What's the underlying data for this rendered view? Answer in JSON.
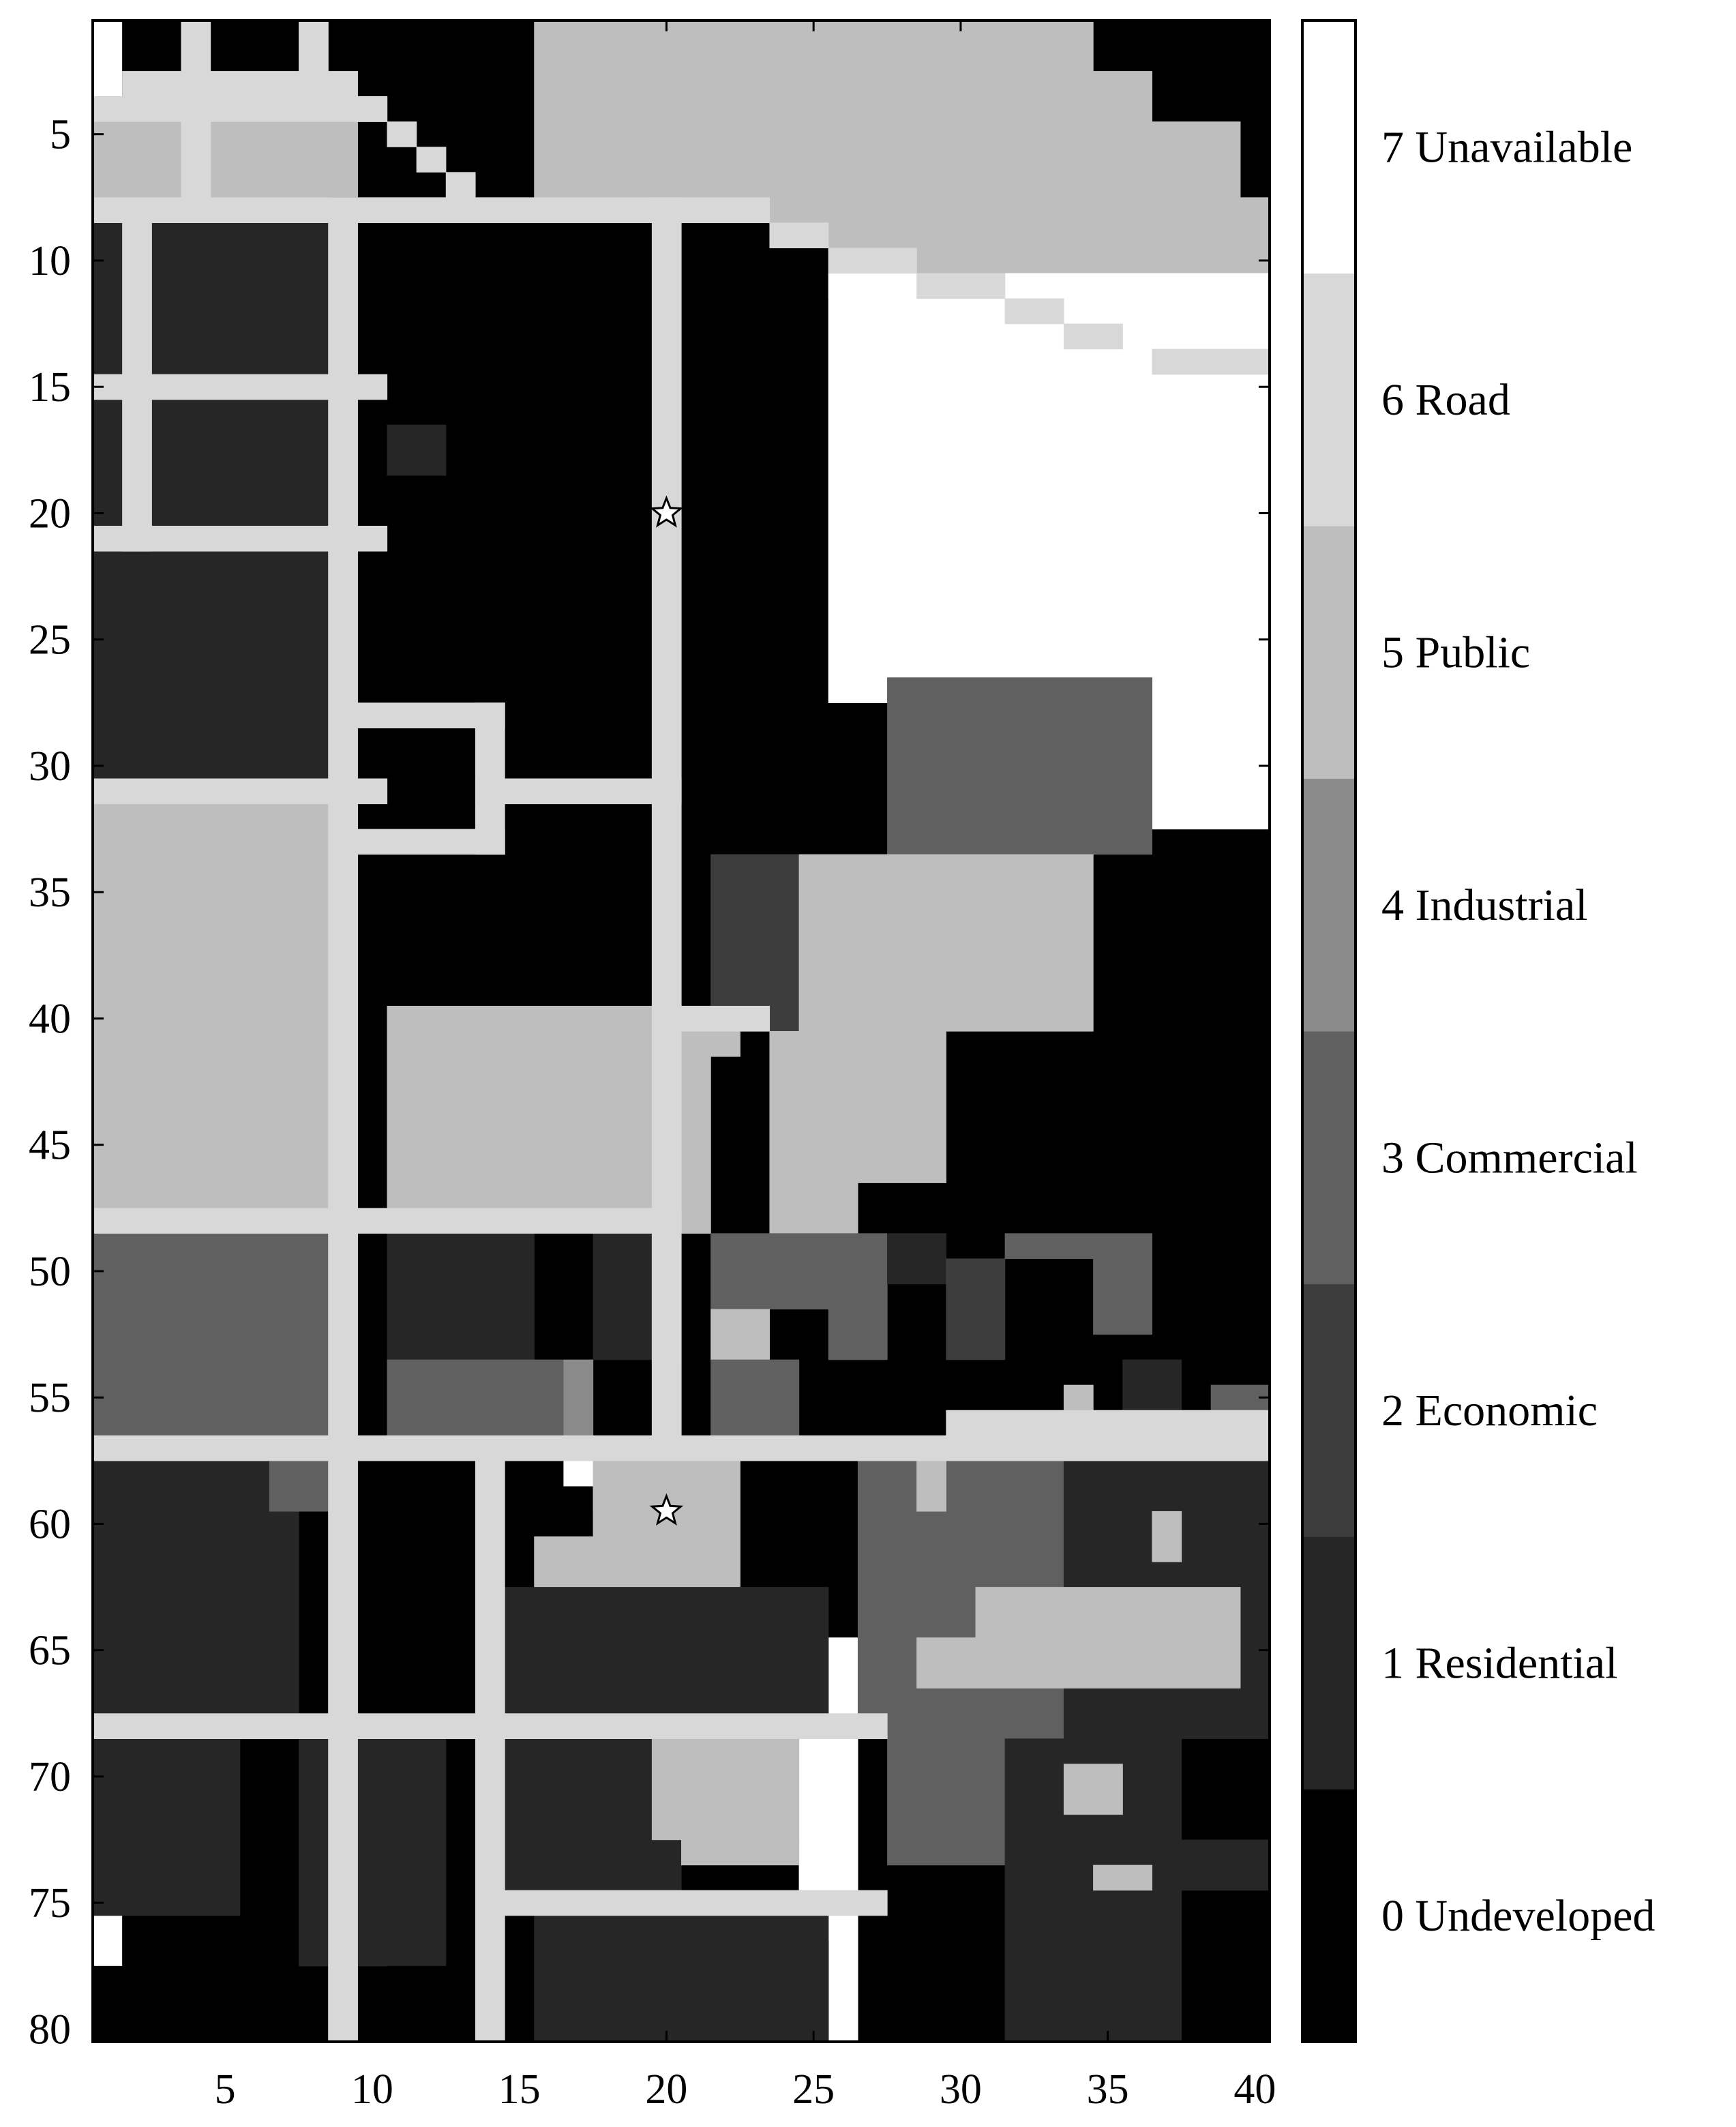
{
  "chart_data": {
    "type": "heatmap",
    "title": "",
    "xlabel": "",
    "ylabel": "",
    "xlim": [
      0.5,
      40.5
    ],
    "ylim": [
      0.5,
      80.5
    ],
    "y_direction": "down",
    "x_ticks": [
      5,
      10,
      15,
      20,
      25,
      30,
      35,
      40
    ],
    "y_ticks": [
      5,
      10,
      15,
      20,
      25,
      30,
      35,
      40,
      45,
      50,
      55,
      60,
      65,
      70,
      75,
      80
    ],
    "grid": false,
    "legend_position": "right",
    "colorbar": {
      "classes": [
        {
          "value": 0,
          "label": "0 Undeveloped",
          "color": "#000000"
        },
        {
          "value": 1,
          "label": "1 Residential",
          "color": "#262626"
        },
        {
          "value": 2,
          "label": "2 Economic",
          "color": "#3d3d3d"
        },
        {
          "value": 3,
          "label": "3 Commercial",
          "color": "#606060"
        },
        {
          "value": 4,
          "label": "4 Industrial",
          "color": "#8a8a8a"
        },
        {
          "value": 5,
          "label": "5 Public",
          "color": "#bebebe"
        },
        {
          "value": 6,
          "label": "6 Road",
          "color": "#d8d8d8"
        },
        {
          "value": 7,
          "label": "7 Unavailable",
          "color": "#ffffff"
        }
      ]
    },
    "markers": [
      {
        "shape": "star",
        "x": 20,
        "y": 20
      },
      {
        "shape": "star",
        "x": 20,
        "y": 59.5
      }
    ],
    "regions": [
      [
        2,
        1,
        40,
        80,
        0
      ],
      [
        16,
        1,
        21,
        8,
        5
      ],
      [
        22,
        1,
        34,
        8,
        5
      ],
      [
        35,
        3,
        36,
        8,
        5
      ],
      [
        37,
        5,
        39,
        8,
        5
      ],
      [
        26,
        8,
        40,
        11,
        5
      ],
      [
        29,
        11,
        40,
        13,
        5
      ],
      [
        37,
        13,
        40,
        14,
        5
      ],
      [
        1,
        4,
        9,
        8,
        5
      ],
      [
        9,
        8,
        10,
        8,
        0
      ],
      [
        26,
        11,
        40,
        27,
        7
      ],
      [
        35,
        27,
        40,
        32,
        7
      ],
      [
        1,
        9,
        1,
        15,
        1
      ],
      [
        3,
        9,
        9,
        15,
        1
      ],
      [
        1,
        15,
        1,
        21,
        1
      ],
      [
        3,
        15,
        9,
        21,
        1
      ],
      [
        1,
        22,
        9,
        31,
        1
      ],
      [
        11,
        17,
        12,
        18,
        1
      ],
      [
        28,
        27,
        36,
        33,
        3
      ],
      [
        22,
        34,
        24,
        40,
        2
      ],
      [
        25,
        34,
        34,
        40,
        5
      ],
      [
        22,
        41,
        22,
        41,
        5
      ],
      [
        24,
        41,
        29,
        46,
        5
      ],
      [
        24,
        47,
        26,
        48,
        5
      ],
      [
        1,
        32,
        9,
        48,
        5
      ],
      [
        11,
        40,
        21,
        48,
        5
      ],
      [
        1,
        49,
        9,
        56,
        3
      ],
      [
        11,
        49,
        15,
        53,
        1
      ],
      [
        18,
        49,
        20,
        53,
        1
      ],
      [
        11,
        54,
        16,
        56,
        3
      ],
      [
        17,
        54,
        17,
        56,
        4
      ],
      [
        22,
        49,
        25,
        51,
        3
      ],
      [
        26,
        49,
        27,
        53,
        3
      ],
      [
        28,
        49,
        29,
        50,
        1
      ],
      [
        30,
        50,
        31,
        53,
        2
      ],
      [
        32,
        49,
        36,
        49,
        3
      ],
      [
        35,
        50,
        36,
        52,
        3
      ],
      [
        22,
        52,
        23,
        53,
        5
      ],
      [
        22,
        54,
        24,
        56,
        3
      ],
      [
        36,
        54,
        37,
        56,
        1
      ],
      [
        39,
        55,
        40,
        56,
        3
      ],
      [
        34,
        55,
        34,
        56,
        5
      ],
      [
        1,
        58,
        7,
        67,
        1
      ],
      [
        7,
        58,
        8,
        59,
        3
      ],
      [
        17,
        58,
        17,
        58,
        7
      ],
      [
        18,
        58,
        18,
        59,
        7
      ],
      [
        19,
        60,
        19,
        60,
        7
      ],
      [
        20,
        61,
        20,
        61,
        7
      ],
      [
        21,
        62,
        21,
        62,
        7
      ],
      [
        22,
        63,
        22,
        63,
        7
      ],
      [
        23,
        64,
        24,
        64,
        7
      ],
      [
        25,
        65,
        26,
        80,
        7
      ],
      [
        18,
        58,
        22,
        62,
        5
      ],
      [
        16,
        61,
        19,
        62,
        5
      ],
      [
        15,
        63,
        25,
        67,
        1
      ],
      [
        27,
        58,
        33,
        68,
        3
      ],
      [
        34,
        58,
        35,
        58,
        3
      ],
      [
        34,
        58,
        40,
        68,
        1
      ],
      [
        29,
        58,
        29,
        59,
        5
      ],
      [
        37,
        60,
        37,
        61,
        5
      ],
      [
        31,
        63,
        39,
        66,
        5
      ],
      [
        29,
        65,
        30,
        66,
        5
      ],
      [
        1,
        69,
        5,
        75,
        1
      ],
      [
        8,
        69,
        12,
        77,
        1
      ],
      [
        15,
        69,
        20,
        74,
        1
      ],
      [
        20,
        69,
        24,
        72,
        5
      ],
      [
        21,
        73,
        24,
        73,
        5
      ],
      [
        16,
        76,
        19,
        76,
        1
      ],
      [
        20,
        76,
        25,
        80,
        1
      ],
      [
        16,
        77,
        25,
        80,
        1
      ],
      [
        28,
        69,
        31,
        73,
        3
      ],
      [
        32,
        69,
        37,
        75,
        1
      ],
      [
        34,
        70,
        35,
        71,
        5
      ],
      [
        35,
        74,
        36,
        74,
        5
      ],
      [
        38,
        73,
        40,
        74,
        1
      ],
      [
        32,
        76,
        37,
        80,
        1
      ],
      [
        1,
        78,
        7,
        80,
        0
      ],
      [
        11,
        78,
        13,
        80,
        0
      ],
      [
        2,
        3,
        8,
        3,
        6
      ],
      [
        1,
        4,
        10,
        4,
        6
      ],
      [
        4,
        1,
        4,
        8,
        6
      ],
      [
        8,
        1,
        8,
        2,
        6
      ],
      [
        9,
        3,
        9,
        3,
        6
      ],
      [
        10,
        4,
        10,
        4,
        6
      ],
      [
        11,
        5,
        11,
        5,
        6
      ],
      [
        12,
        6,
        12,
        6,
        6
      ],
      [
        13,
        7,
        13,
        7,
        6
      ],
      [
        1,
        8,
        21,
        8,
        6
      ],
      [
        22,
        8,
        23,
        8,
        6
      ],
      [
        24,
        9,
        25,
        9,
        6
      ],
      [
        26,
        10,
        28,
        10,
        6
      ],
      [
        29,
        11,
        31,
        11,
        6
      ],
      [
        32,
        12,
        33,
        12,
        6
      ],
      [
        34,
        13,
        35,
        13,
        6
      ],
      [
        37,
        14,
        40,
        14,
        6
      ],
      [
        1,
        15,
        10,
        15,
        6
      ],
      [
        1,
        21,
        10,
        21,
        6
      ],
      [
        2,
        9,
        2,
        21,
        6
      ],
      [
        9,
        8,
        9,
        80,
        6
      ],
      [
        20,
        8,
        20,
        57,
        6
      ],
      [
        10,
        28,
        14,
        28,
        6
      ],
      [
        14,
        28,
        14,
        33,
        6
      ],
      [
        10,
        33,
        14,
        33,
        6
      ],
      [
        14,
        31,
        20,
        31,
        6
      ],
      [
        1,
        31,
        10,
        31,
        6
      ],
      [
        1,
        48,
        20,
        48,
        6
      ],
      [
        21,
        40,
        23,
        40,
        6
      ],
      [
        1,
        57,
        40,
        57,
        6
      ],
      [
        30,
        56,
        40,
        56,
        6
      ],
      [
        14,
        58,
        14,
        80,
        6
      ],
      [
        1,
        68,
        27,
        68,
        6
      ],
      [
        15,
        75,
        27,
        75,
        6
      ]
    ]
  }
}
